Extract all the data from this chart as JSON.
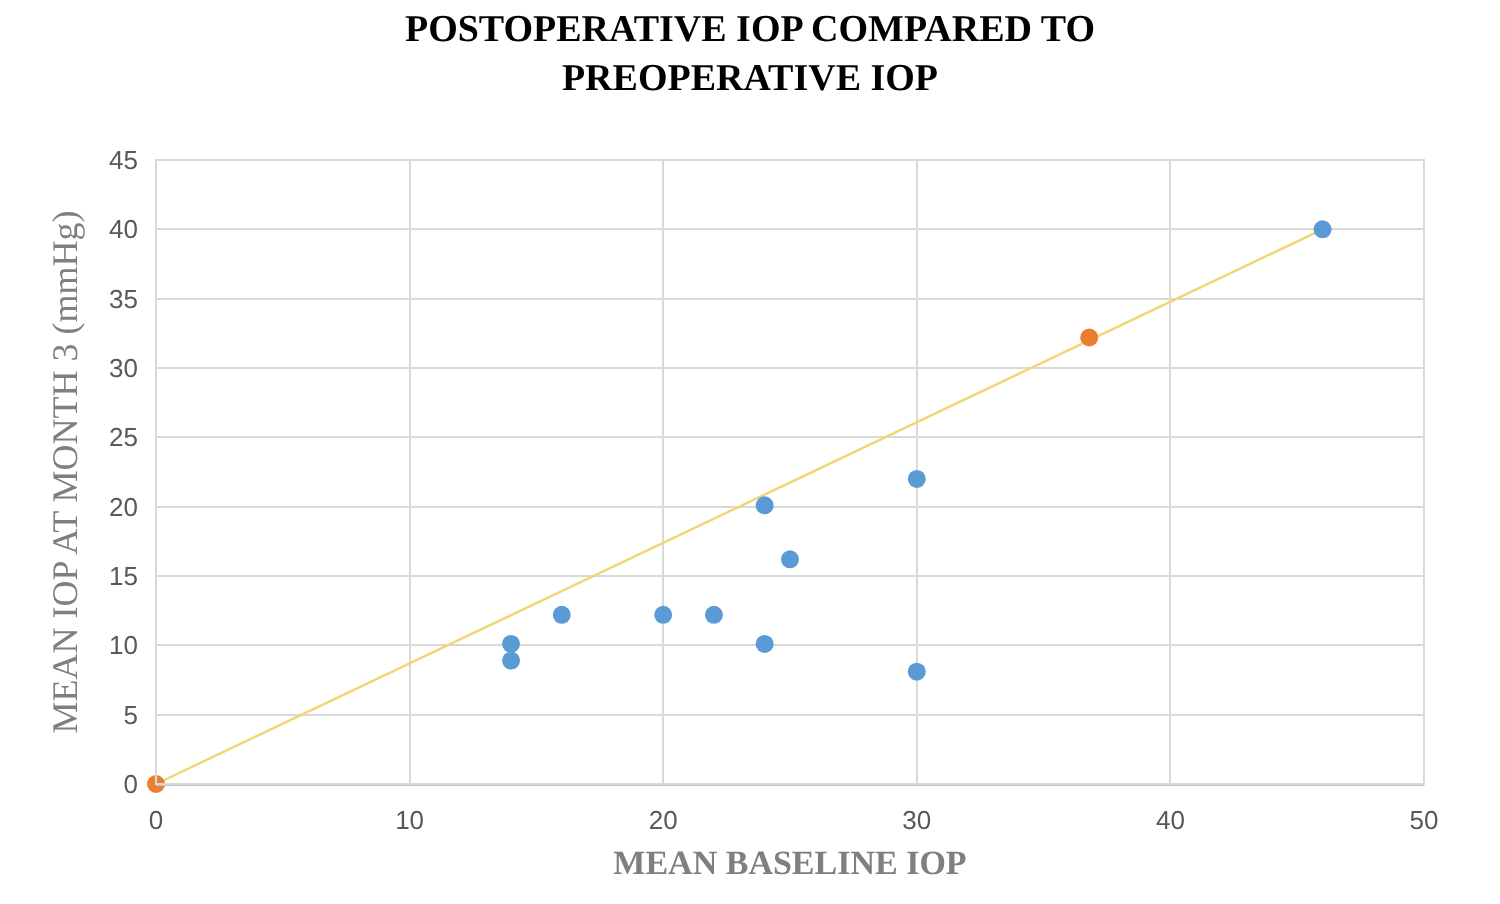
{
  "chart_data": {
    "type": "scatter",
    "title": "POSTOPERATIVE IOP COMPARED TO\nPREOPERATIVE IOP",
    "xlabel": "MEAN BASELINE IOP",
    "ylabel": "MEAN IOP AT MONTH 3 (mmHg)",
    "xlim": [
      0,
      50
    ],
    "xticks": [
      0,
      10,
      20,
      30,
      40,
      50
    ],
    "ylim": [
      0,
      45
    ],
    "yticks": [
      0,
      5,
      10,
      15,
      20,
      25,
      30,
      35,
      40,
      45
    ],
    "grid": true,
    "marker": "circle",
    "series": [
      {
        "type": "line",
        "color": "#f2d675",
        "x": [
          0,
          46
        ],
        "values": [
          0,
          40
        ],
        "marker": "none",
        "line_style": "solid"
      },
      {
        "color": "#5b9bd5",
        "x": [
          14,
          14,
          16,
          20,
          22,
          24,
          24,
          25,
          30,
          30,
          46
        ],
        "values": [
          10.1,
          8.9,
          12.2,
          12.2,
          12.2,
          20.1,
          10.1,
          16.2,
          22,
          8.1,
          40
        ]
      },
      {
        "color": "#ed7d31",
        "x": [
          0,
          36.8
        ],
        "values": [
          0,
          32.2
        ]
      }
    ]
  }
}
